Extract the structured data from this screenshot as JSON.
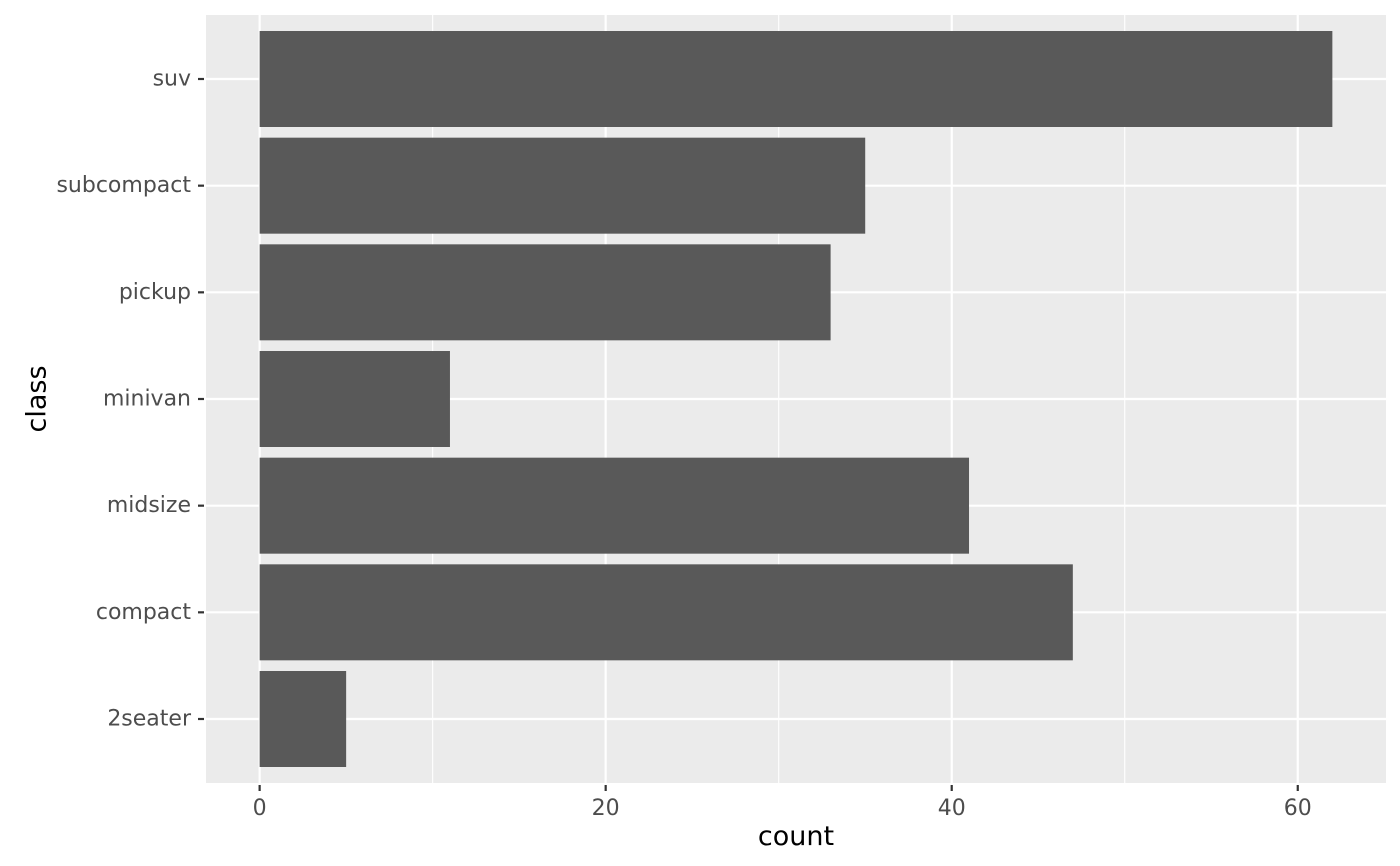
{
  "chart_data": {
    "type": "bar",
    "orientation": "horizontal",
    "categories": [
      "2seater",
      "compact",
      "midsize",
      "minivan",
      "pickup",
      "subcompact",
      "suv"
    ],
    "values": [
      5,
      47,
      41,
      11,
      33,
      35,
      62
    ],
    "xlabel": "count",
    "ylabel": "class",
    "xlim": [
      -3.1,
      65.1
    ],
    "xticks": [
      0,
      20,
      40,
      60
    ],
    "xticks_minor": [
      10,
      30,
      50
    ],
    "grid": true,
    "legend": "none",
    "colors": {
      "panel": "#ebebeb",
      "grid": "#ffffff",
      "bar": "#595959",
      "tick_text": "#4d4d4d",
      "tick_mark": "#333333",
      "title_text": "#000000"
    }
  }
}
